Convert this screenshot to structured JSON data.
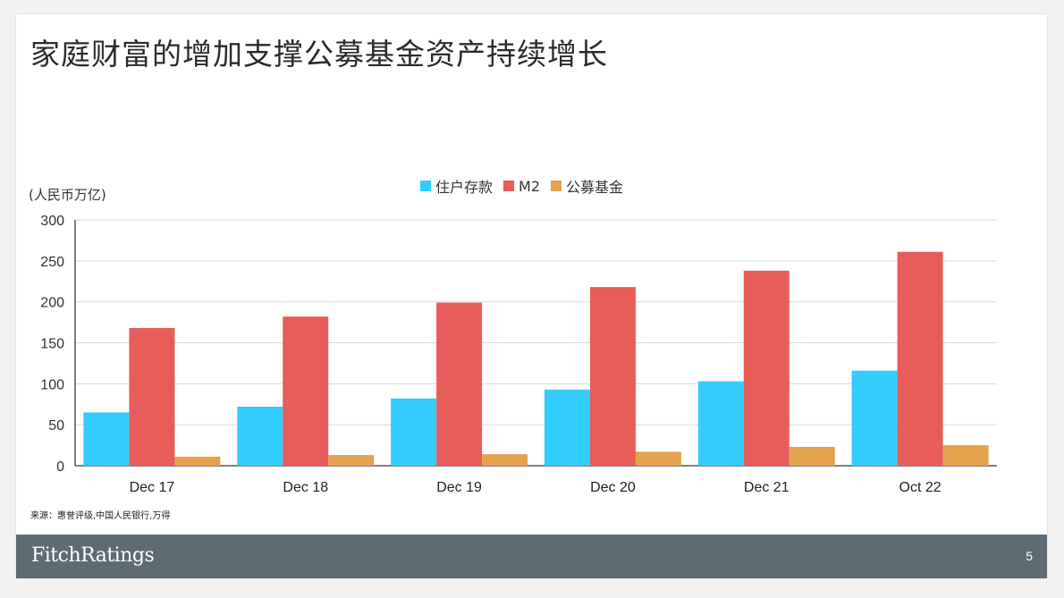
{
  "title": "家庭财富的增加支撑公募基金资产持续增长",
  "source": "来源：惠誉评级,中国人民银行,万得",
  "footer": {
    "logo": "FitchRatings",
    "page_number": "5"
  },
  "chart_data": {
    "type": "bar",
    "title": "",
    "ylabel": "(人民币万亿)",
    "xlabel": "",
    "ylim": [
      0,
      300
    ],
    "yticks": [
      0,
      50,
      100,
      150,
      200,
      250,
      300
    ],
    "grid": true,
    "legend_position": "top-center",
    "categories": [
      "Dec 17",
      "Dec 18",
      "Dec 19",
      "Dec 20",
      "Dec 21",
      "Oct 22"
    ],
    "series": [
      {
        "name": "住户存款",
        "color": "#33ccff",
        "values": [
          65,
          72,
          82,
          93,
          103,
          116
        ]
      },
      {
        "name": "M2",
        "color": "#e85c5a",
        "values": [
          168,
          182,
          199,
          218,
          238,
          261
        ]
      },
      {
        "name": "公募基金",
        "color": "#e3a24b",
        "values": [
          11,
          13,
          14,
          17,
          23,
          25
        ]
      }
    ]
  }
}
